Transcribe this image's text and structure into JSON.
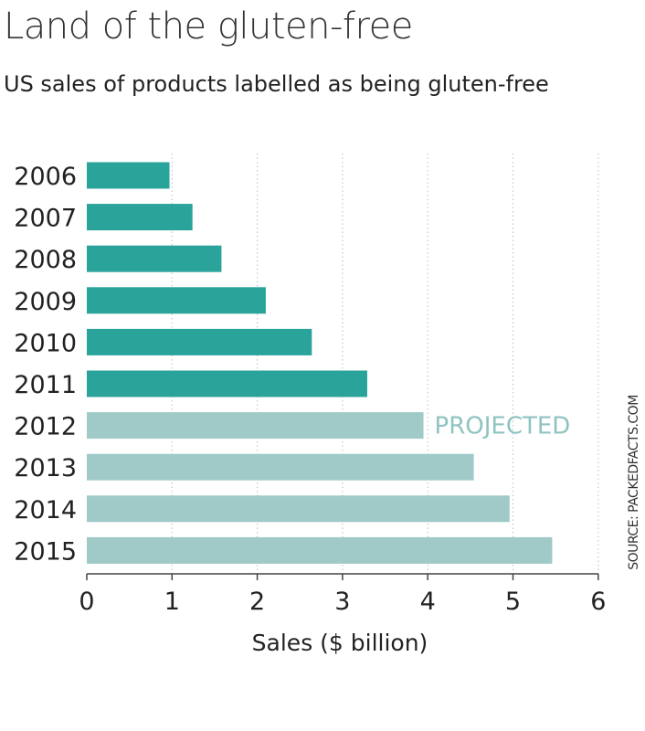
{
  "title": "Land of the gluten-free",
  "subtitle": "US sales of products labelled as being gluten-free",
  "source": "SOURCE: PACKEDFACTS.COM",
  "colors": {
    "actual": "#2aa39a",
    "projected": "#9fcac8",
    "grid": "#bdbdbd",
    "projected_label": "#8fc3c1"
  },
  "chart_data": {
    "type": "bar",
    "orientation": "horizontal",
    "title": "Land of the gluten-free",
    "subtitle": "US sales of products labelled as being gluten-free",
    "xlabel": "Sales ($ billion)",
    "ylabel": "",
    "categories": [
      "2006",
      "2007",
      "2008",
      "2009",
      "2010",
      "2011",
      "2012",
      "2013",
      "2014",
      "2015"
    ],
    "values": [
      0.97,
      1.24,
      1.58,
      2.1,
      2.64,
      3.29,
      3.95,
      4.54,
      4.96,
      5.46
    ],
    "projected": [
      false,
      false,
      false,
      false,
      false,
      false,
      true,
      true,
      true,
      true
    ],
    "projected_label": "PROJECTED",
    "xlim": [
      0,
      6
    ],
    "xticks": [
      0,
      1,
      2,
      3,
      4,
      5,
      6
    ],
    "grid": "vertical-dotted",
    "legend": "none"
  }
}
